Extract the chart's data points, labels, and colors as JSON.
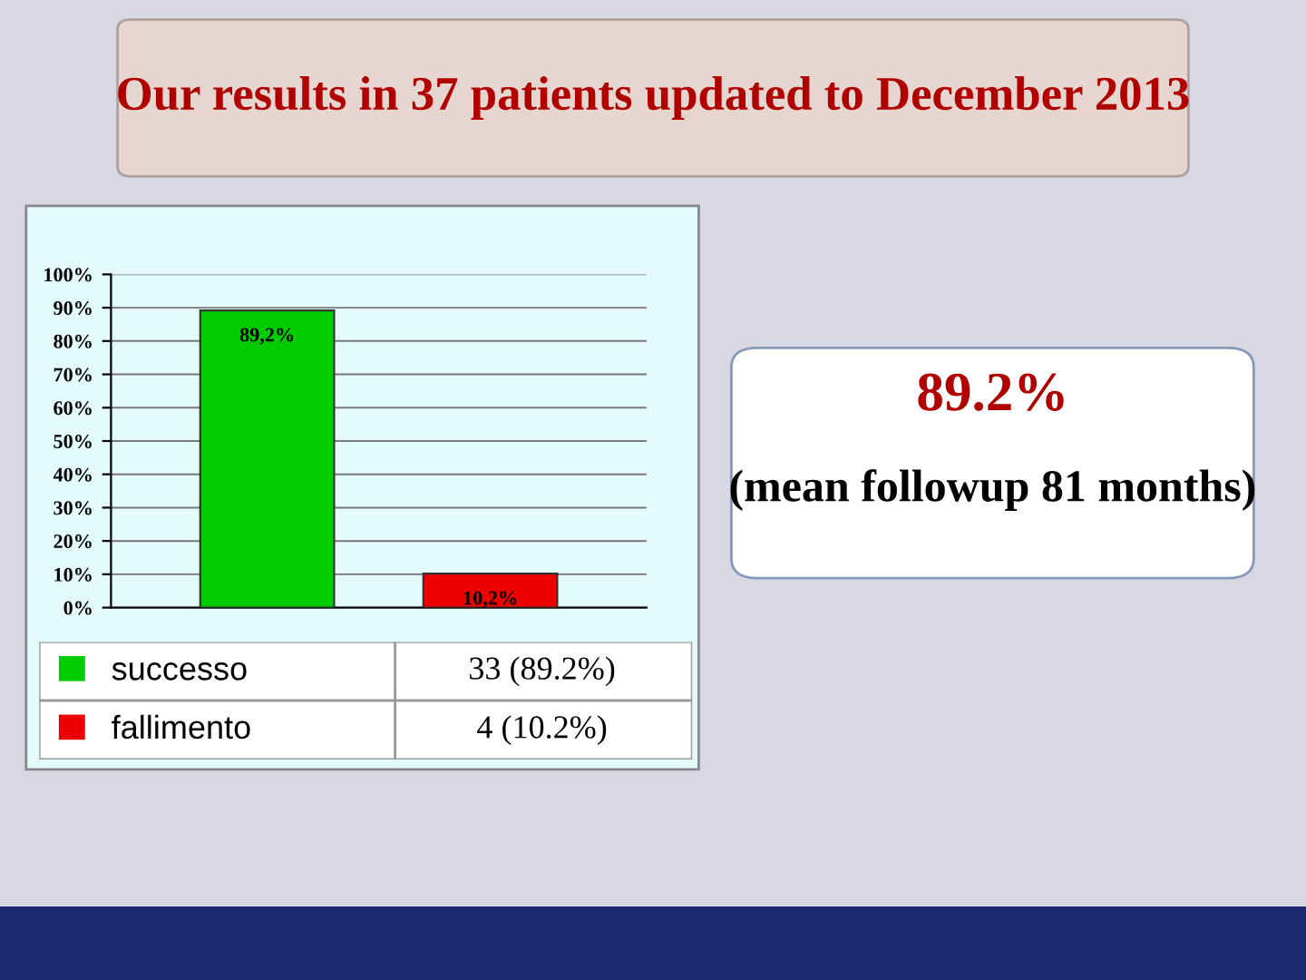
{
  "chart_data": {
    "type": "bar",
    "title": "Our results in 37 patients updated to December 2013",
    "categories": [
      null,
      null
    ],
    "series": [
      {
        "name": "successo",
        "color": "#00cc00",
        "values": [
          89.2,
          null
        ]
      },
      {
        "name": "fallimento",
        "color": "#ee0000",
        "values": [
          null,
          10.2
        ]
      }
    ],
    "value_labels": [
      "89,2%",
      "10,2%"
    ],
    "ylim": [
      0,
      100
    ],
    "yticks": [
      {
        "value": 0,
        "label": "0%"
      },
      {
        "value": 10,
        "label": "10%"
      },
      {
        "value": 20,
        "label": "20%"
      },
      {
        "value": 30,
        "label": "30%"
      },
      {
        "value": 40,
        "label": "40%"
      },
      {
        "value": 50,
        "label": "50%"
      },
      {
        "value": 60,
        "label": "60%"
      },
      {
        "value": 70,
        "label": "70%"
      },
      {
        "value": 80,
        "label": "80%"
      },
      {
        "value": 90,
        "label": "90%"
      },
      {
        "value": 100,
        "label": "100%"
      }
    ],
    "grid": "y",
    "legend": "bottom",
    "annotations": [
      "89.2%",
      "(mean followup 81 months)",
      "33 (89.2%)",
      "4 (10.2%)"
    ]
  }
}
